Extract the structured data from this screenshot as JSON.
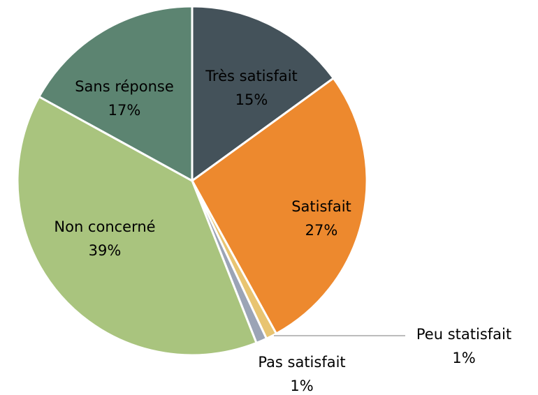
{
  "chart_data": {
    "type": "pie",
    "categories": [
      "Très satisfait",
      "Satisfait",
      "Peu statisfait",
      "Pas satisfait",
      "Non concerné",
      "Sans réponse"
    ],
    "values": [
      15,
      27,
      1,
      1,
      39,
      17
    ],
    "value_labels": [
      "15%",
      "27%",
      "1%",
      "1%",
      "39%",
      "17%"
    ],
    "colors": [
      "#44525a",
      "#ed892e",
      "#e8c471",
      "#9ba4b6",
      "#a9c47e",
      "#5c8471"
    ]
  }
}
